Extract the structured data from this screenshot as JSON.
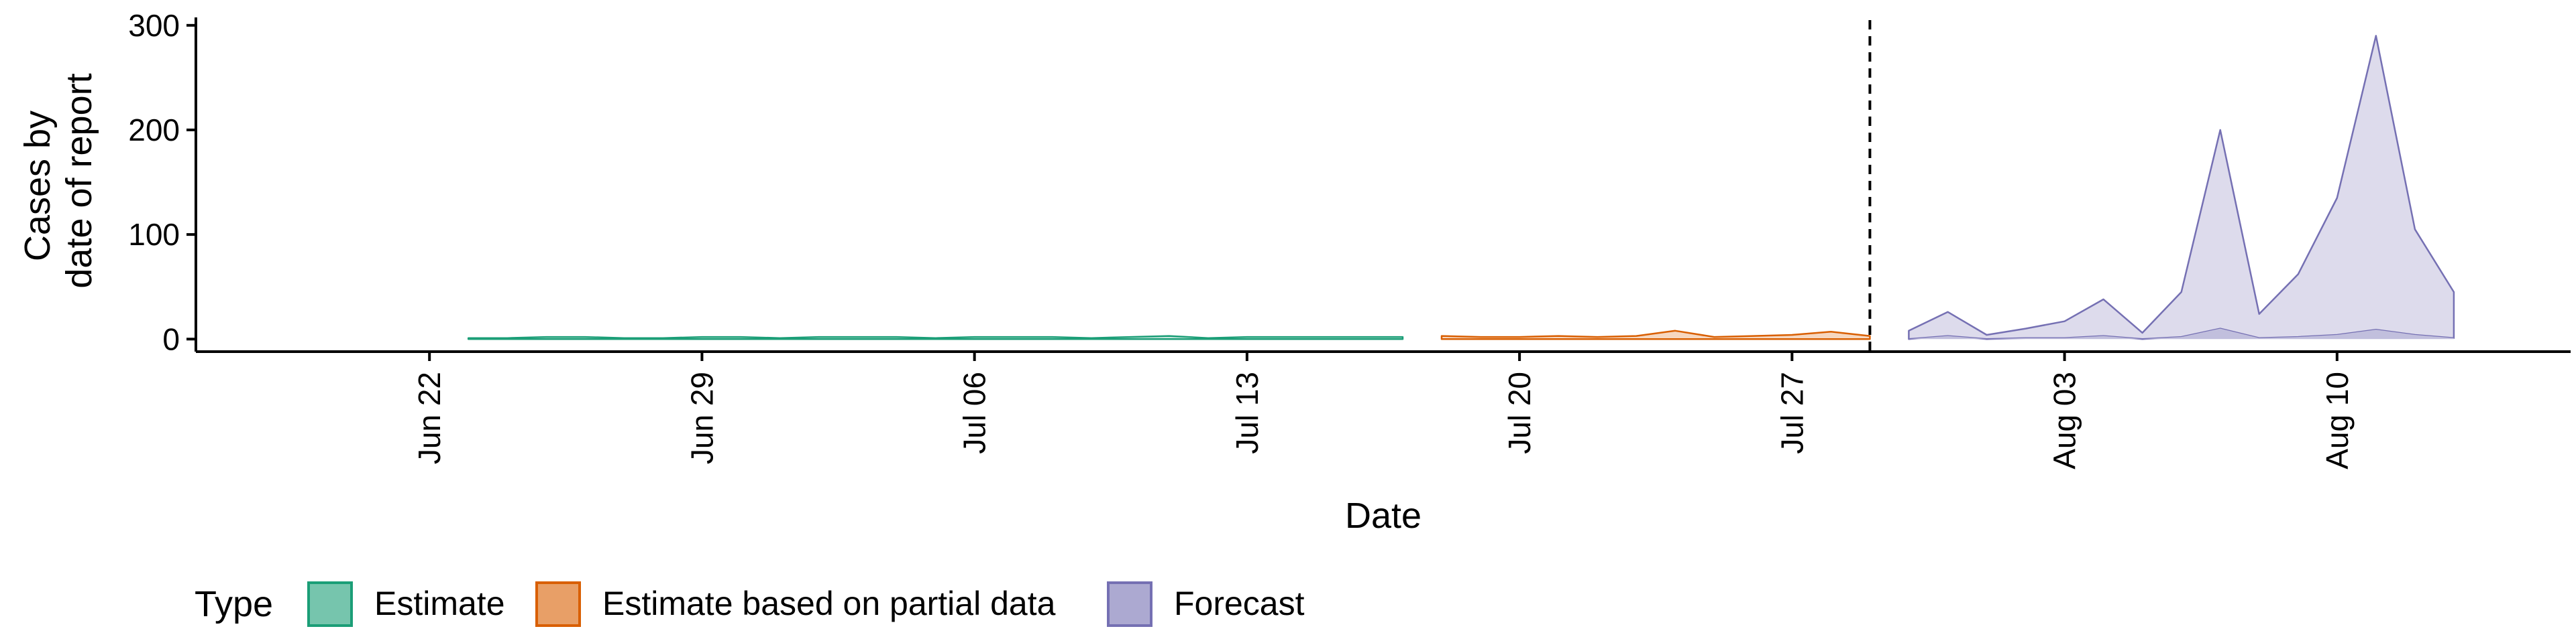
{
  "chart_data": {
    "type": "area",
    "xlabel": "Date",
    "ylabel": [
      "Cases by",
      "date of report"
    ],
    "x_ticks": [
      "2020-06-22",
      "2020-06-29",
      "2020-07-06",
      "2020-07-13",
      "2020-07-20",
      "2020-07-27",
      "2020-08-03",
      "2020-08-10"
    ],
    "x_tick_labels": [
      "Jun 22",
      "Jun 29",
      "Jul 06",
      "Jul 13",
      "Jul 20",
      "Jul 27",
      "Aug 03",
      "Aug 10"
    ],
    "y_ticks": [
      0,
      100,
      200,
      300
    ],
    "ylim": [
      -12,
      305
    ],
    "xlim": [
      "2020-06-16",
      "2020-08-16"
    ],
    "grid": false,
    "vline": {
      "x": "2020-07-29",
      "style": "dashed"
    },
    "legend": {
      "title": "Type",
      "position": "bottom",
      "entries": [
        {
          "label": "Estimate",
          "color": "#1b9e77"
        },
        {
          "label": "Estimate based on partial data",
          "color": "#d95f02"
        },
        {
          "label": "Forecast",
          "color": "#7570b3"
        }
      ]
    },
    "series": [
      {
        "name": "Estimate",
        "color": "#1b9e77",
        "x": [
          "2020-06-23",
          "2020-06-24",
          "2020-06-25",
          "2020-06-26",
          "2020-06-27",
          "2020-06-28",
          "2020-06-29",
          "2020-06-30",
          "2020-07-01",
          "2020-07-02",
          "2020-07-03",
          "2020-07-04",
          "2020-07-05",
          "2020-07-06",
          "2020-07-07",
          "2020-07-08",
          "2020-07-09",
          "2020-07-10",
          "2020-07-11",
          "2020-07-12",
          "2020-07-13",
          "2020-07-14",
          "2020-07-15",
          "2020-07-16",
          "2020-07-17"
        ],
        "upper": [
          1,
          1,
          2,
          2,
          1,
          1,
          2,
          2,
          1,
          2,
          2,
          2,
          1,
          2,
          2,
          2,
          1,
          2,
          3,
          1,
          2,
          2,
          2,
          2,
          2
        ],
        "lower": [
          0,
          0,
          0,
          0,
          0,
          0,
          0,
          0,
          0,
          0,
          0,
          0,
          0,
          0,
          0,
          0,
          0,
          0,
          0,
          0,
          0,
          0,
          0,
          0,
          0
        ]
      },
      {
        "name": "Estimate based on partial data",
        "color": "#d95f02",
        "x": [
          "2020-07-18",
          "2020-07-19",
          "2020-07-20",
          "2020-07-21",
          "2020-07-22",
          "2020-07-23",
          "2020-07-24",
          "2020-07-25",
          "2020-07-26",
          "2020-07-27",
          "2020-07-28",
          "2020-07-29"
        ],
        "upper": [
          3,
          2,
          2,
          3,
          2,
          3,
          8,
          2,
          3,
          4,
          7,
          3
        ],
        "lower": [
          0,
          0,
          0,
          0,
          0,
          0,
          0,
          0,
          0,
          0,
          0,
          0
        ]
      },
      {
        "name": "Forecast",
        "color": "#7570b3",
        "x": [
          "2020-07-30",
          "2020-07-31",
          "2020-08-01",
          "2020-08-02",
          "2020-08-03",
          "2020-08-04",
          "2020-08-05",
          "2020-08-06",
          "2020-08-07",
          "2020-08-08",
          "2020-08-09",
          "2020-08-10",
          "2020-08-11",
          "2020-08-12",
          "2020-08-13"
        ],
        "upper": [
          8,
          26,
          4,
          10,
          17,
          38,
          6,
          45,
          200,
          24,
          62,
          135,
          290,
          105,
          45
        ],
        "lower": [
          0,
          3,
          0,
          1,
          1,
          3,
          0,
          2,
          10,
          1,
          2,
          4,
          9,
          4,
          1
        ]
      }
    ]
  }
}
